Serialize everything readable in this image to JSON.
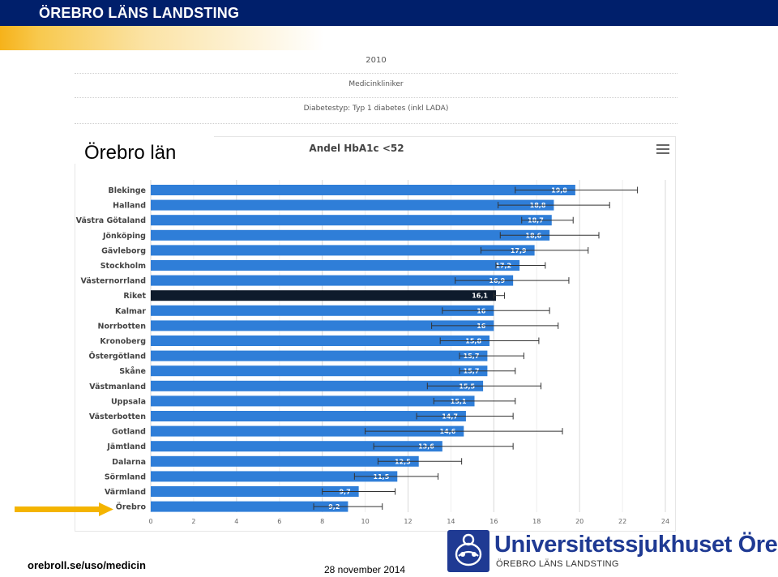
{
  "header": {
    "brand": "ÖREBRO LÄNS LANDSTING"
  },
  "filters": {
    "year": "2010",
    "clinic": "Medicinkliniker",
    "diabetes_type": "Diabetestyp: Typ 1 diabetes (inkl LADA)"
  },
  "region_label": "Örebro län",
  "footer": {
    "url": "orebroll.se/uso/medicin",
    "date": "28 november 2014"
  },
  "logo": {
    "name": "Universitetssjukhuset Örebro",
    "sub": "ÖREBRO LÄNS LANDSTING"
  },
  "colors": {
    "bar": "#2f7ed8",
    "highlight": "#0e1b2c",
    "header_bg": "#001f6b",
    "arrow": "#f4b400"
  },
  "chart_data": {
    "type": "bar",
    "orientation": "horizontal",
    "title": "Andel HbA1c <52",
    "xlim": [
      0,
      24
    ],
    "xticks": [
      "0",
      "2",
      "4",
      "6",
      "8",
      "10",
      "12",
      "14",
      "16",
      "18",
      "20",
      "22",
      "24"
    ],
    "grid": true,
    "highlight_category": "Riket",
    "categories": [
      "Blekinge",
      "Halland",
      "Västra Götaland",
      "Jönköping",
      "Gävleborg",
      "Stockholm",
      "Västernorrland",
      "Riket",
      "Kalmar",
      "Norrbotten",
      "Kronoberg",
      "Östergötland",
      "Skåne",
      "Västmanland",
      "Uppsala",
      "Västerbotten",
      "Gotland",
      "Jämtland",
      "Dalarna",
      "Sörmland",
      "Värmland",
      "Örebro"
    ],
    "values": [
      19.8,
      18.8,
      18.7,
      18.6,
      17.9,
      17.2,
      16.9,
      16.1,
      16,
      16,
      15.8,
      15.7,
      15.7,
      15.5,
      15.1,
      14.7,
      14.6,
      13.6,
      12.5,
      11.5,
      9.7,
      9.2
    ],
    "value_labels": [
      "19,8",
      "18,8",
      "18,7",
      "18,6",
      "17,9",
      "17,2",
      "16,9",
      "16,1",
      "16",
      "16",
      "15,8",
      "15,7",
      "15,7",
      "15,5",
      "15,1",
      "14,7",
      "14,6",
      "13,6",
      "12,5",
      "11,5",
      "9,7",
      "9,2"
    ],
    "error_low": [
      17,
      16.2,
      17.3,
      16.3,
      15.4,
      16.1,
      14.2,
      16,
      13.6,
      13.1,
      13.5,
      14.4,
      14.4,
      12.9,
      13.2,
      12.4,
      10,
      10.4,
      10.6,
      9.5,
      8,
      7.6
    ],
    "error_high": [
      22.7,
      21.4,
      19.7,
      20.9,
      20.4,
      18.4,
      19.5,
      16.5,
      18.6,
      19,
      18.1,
      17.4,
      17,
      18.2,
      17,
      16.9,
      19.2,
      16.9,
      14.5,
      13.4,
      11.4,
      10.8
    ]
  }
}
